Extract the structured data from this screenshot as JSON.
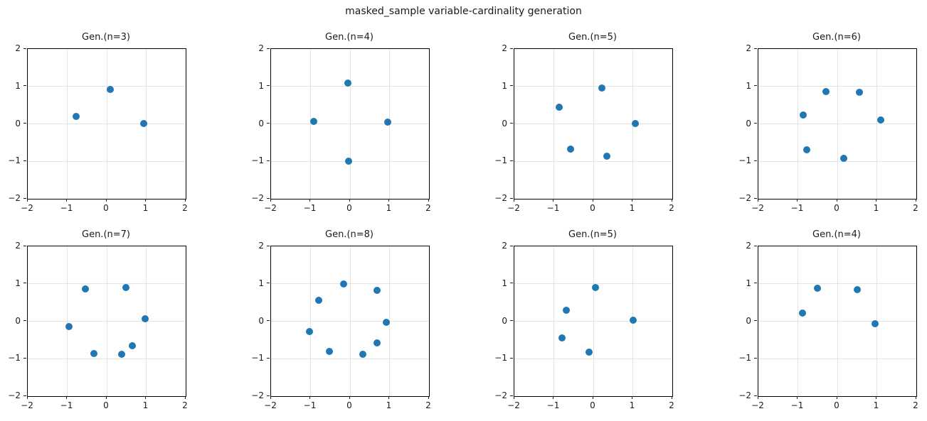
{
  "figure": {
    "suptitle": "masked_sample variable-cardinality generation"
  },
  "style": {
    "marker_color": "#1f77b4",
    "grid_color": "#e4e4e4",
    "spine_color": "#000000",
    "text_color": "#1a1a1a",
    "background": "#ffffff"
  },
  "chart_data": [
    {
      "type": "scatter",
      "title": "Gen.(n=3)",
      "n": 3,
      "points": [
        [
          0.09,
          0.92
        ],
        [
          -0.77,
          0.2
        ],
        [
          0.94,
          0.01
        ]
      ],
      "xlim": [
        -2,
        2
      ],
      "ylim": [
        -2,
        2
      ],
      "xticks": [
        -2,
        -1,
        0,
        1,
        2
      ],
      "yticks": [
        -2,
        -1,
        0,
        1,
        2
      ],
      "xtick_labels": [
        "−2",
        "−1",
        "0",
        "1",
        "2"
      ],
      "ytick_labels": [
        "−2",
        "−1",
        "0",
        "1",
        "2"
      ],
      "grid": true,
      "marker_color": "#1f77b4"
    },
    {
      "type": "scatter",
      "title": "Gen.(n=4)",
      "n": 4,
      "points": [
        [
          -0.05,
          1.09
        ],
        [
          -0.91,
          0.07
        ],
        [
          0.96,
          0.05
        ],
        [
          -0.04,
          -1.0
        ]
      ],
      "xlim": [
        -2,
        2
      ],
      "ylim": [
        -2,
        2
      ],
      "xticks": [
        -2,
        -1,
        0,
        1,
        2
      ],
      "yticks": [
        -2,
        -1,
        0,
        1,
        2
      ],
      "xtick_labels": [
        "−2",
        "−1",
        "0",
        "1",
        "2"
      ],
      "ytick_labels": [
        "−2",
        "−1",
        "0",
        "1",
        "2"
      ],
      "grid": true,
      "marker_color": "#1f77b4"
    },
    {
      "type": "scatter",
      "title": "Gen.(n=5)",
      "n": 5,
      "points": [
        [
          0.21,
          0.95
        ],
        [
          -0.87,
          0.45
        ],
        [
          1.07,
          0.01
        ],
        [
          -0.58,
          -0.67
        ],
        [
          0.34,
          -0.86
        ]
      ],
      "xlim": [
        -2,
        2
      ],
      "ylim": [
        -2,
        2
      ],
      "xticks": [
        -2,
        -1,
        0,
        1,
        2
      ],
      "yticks": [
        -2,
        -1,
        0,
        1,
        2
      ],
      "xtick_labels": [
        "−2",
        "−1",
        "0",
        "1",
        "2"
      ],
      "ytick_labels": [
        "−2",
        "−1",
        "0",
        "1",
        "2"
      ],
      "grid": true,
      "marker_color": "#1f77b4"
    },
    {
      "type": "scatter",
      "title": "Gen.(n=6)",
      "n": 6,
      "points": [
        [
          -0.29,
          0.86
        ],
        [
          0.55,
          0.84
        ],
        [
          -0.87,
          0.23
        ],
        [
          1.1,
          0.11
        ],
        [
          -0.77,
          -0.69
        ],
        [
          0.16,
          -0.91
        ]
      ],
      "xlim": [
        -2,
        2
      ],
      "ylim": [
        -2,
        2
      ],
      "xticks": [
        -2,
        -1,
        0,
        1,
        2
      ],
      "yticks": [
        -2,
        -1,
        0,
        1,
        2
      ],
      "xtick_labels": [
        "−2",
        "−1",
        "0",
        "1",
        "2"
      ],
      "ytick_labels": [
        "−2",
        "−1",
        "0",
        "1",
        "2"
      ],
      "grid": true,
      "marker_color": "#1f77b4"
    },
    {
      "type": "scatter",
      "title": "Gen.(n=7)",
      "n": 7,
      "points": [
        [
          -0.54,
          0.86
        ],
        [
          0.49,
          0.9
        ],
        [
          0.97,
          0.06
        ],
        [
          -0.95,
          -0.14
        ],
        [
          0.65,
          -0.65
        ],
        [
          -0.32,
          -0.86
        ],
        [
          0.37,
          -0.88
        ]
      ],
      "xlim": [
        -2,
        2
      ],
      "ylim": [
        -2,
        2
      ],
      "xticks": [
        -2,
        -1,
        0,
        1,
        2
      ],
      "yticks": [
        -2,
        -1,
        0,
        1,
        2
      ],
      "xtick_labels": [
        "−2",
        "−1",
        "0",
        "1",
        "2"
      ],
      "ytick_labels": [
        "−2",
        "−1",
        "0",
        "1",
        "2"
      ],
      "grid": true,
      "marker_color": "#1f77b4"
    },
    {
      "type": "scatter",
      "title": "Gen.(n=8)",
      "n": 8,
      "points": [
        [
          -0.16,
          0.99
        ],
        [
          0.69,
          0.82
        ],
        [
          -0.79,
          0.55
        ],
        [
          0.92,
          -0.02
        ],
        [
          -1.02,
          -0.27
        ],
        [
          0.69,
          -0.58
        ],
        [
          -0.53,
          -0.8
        ],
        [
          0.33,
          -0.88
        ]
      ],
      "xlim": [
        -2,
        2
      ],
      "ylim": [
        -2,
        2
      ],
      "xticks": [
        -2,
        -1,
        0,
        1,
        2
      ],
      "yticks": [
        -2,
        -1,
        0,
        1,
        2
      ],
      "xtick_labels": [
        "−2",
        "−1",
        "0",
        "1",
        "2"
      ],
      "ytick_labels": [
        "−2",
        "−1",
        "0",
        "1",
        "2"
      ],
      "grid": true,
      "marker_color": "#1f77b4"
    },
    {
      "type": "scatter",
      "title": "Gen.(n=5)",
      "n": 5,
      "points": [
        [
          0.06,
          0.9
        ],
        [
          -0.69,
          0.29
        ],
        [
          1.0,
          0.03
        ],
        [
          -0.8,
          -0.45
        ],
        [
          -0.1,
          -0.83
        ]
      ],
      "xlim": [
        -2,
        2
      ],
      "ylim": [
        -2,
        2
      ],
      "xticks": [
        -2,
        -1,
        0,
        1,
        2
      ],
      "yticks": [
        -2,
        -1,
        0,
        1,
        2
      ],
      "xtick_labels": [
        "−2",
        "−1",
        "0",
        "1",
        "2"
      ],
      "ytick_labels": [
        "−2",
        "−1",
        "0",
        "1",
        "2"
      ],
      "grid": true,
      "marker_color": "#1f77b4"
    },
    {
      "type": "scatter",
      "title": "Gen.(n=4)",
      "n": 4,
      "points": [
        [
          -0.5,
          0.88
        ],
        [
          0.5,
          0.85
        ],
        [
          -0.88,
          0.22
        ],
        [
          0.95,
          -0.07
        ]
      ],
      "xlim": [
        -2,
        2
      ],
      "ylim": [
        -2,
        2
      ],
      "xticks": [
        -2,
        -1,
        0,
        1,
        2
      ],
      "yticks": [
        -2,
        -1,
        0,
        1,
        2
      ],
      "xtick_labels": [
        "−2",
        "−1",
        "0",
        "1",
        "2"
      ],
      "ytick_labels": [
        "−2",
        "−1",
        "0",
        "1",
        "2"
      ],
      "grid": true,
      "marker_color": "#1f77b4"
    }
  ]
}
